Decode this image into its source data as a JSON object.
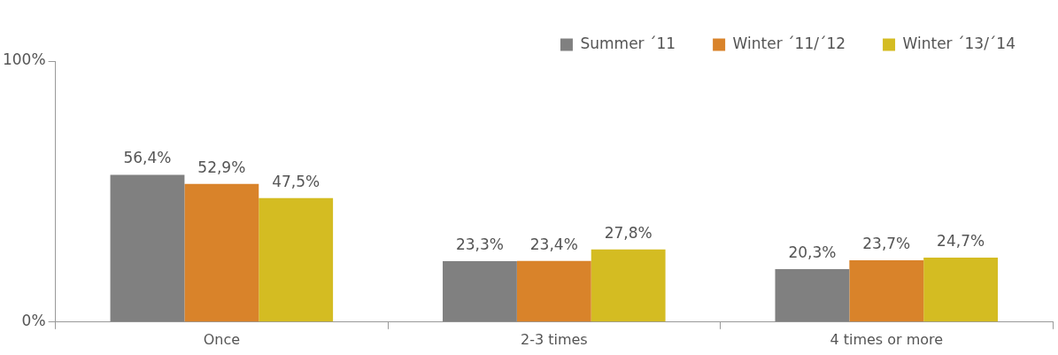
{
  "chart_data": {
    "type": "bar",
    "categories": [
      "Once",
      "2-3 times",
      "4 times or more"
    ],
    "series": [
      {
        "name": "Summer ´11",
        "color": "#808080",
        "values": [
          56.4,
          23.3,
          20.3
        ],
        "value_labels": [
          "56,4%",
          "23,3%",
          "20,3%"
        ]
      },
      {
        "name": "Winter ´11/´12",
        "color": "#d9832a",
        "values": [
          52.9,
          23.4,
          23.7
        ],
        "value_labels": [
          "52,9%",
          "23,4%",
          "23,7%"
        ]
      },
      {
        "name": "Winter ´13/´14",
        "color": "#d4bc22",
        "values": [
          47.5,
          27.8,
          24.7
        ],
        "value_labels": [
          "47,5%",
          "27,8%",
          "24,7%"
        ]
      }
    ],
    "ylim": [
      0,
      100
    ],
    "yticks": [
      {
        "value": 0,
        "label": "0%"
      },
      {
        "value": 100,
        "label": "100%"
      }
    ],
    "legend": "top right"
  }
}
